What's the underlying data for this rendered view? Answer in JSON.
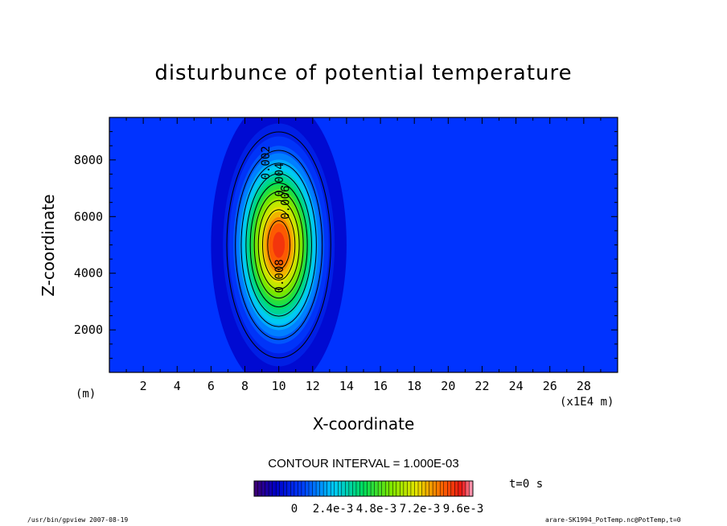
{
  "chart_data": {
    "type": "heatmap",
    "title": "disturbunce of potential temperature",
    "xlabel": "X-coordinate",
    "ylabel": "Z-coordinate",
    "x_unit": "(x1E4 m)",
    "y_unit": "(m)",
    "xlim": [
      0,
      30
    ],
    "ylim": [
      500,
      9500
    ],
    "x_ticks": [
      2,
      4,
      6,
      8,
      10,
      12,
      14,
      16,
      18,
      20,
      22,
      24,
      26,
      28
    ],
    "y_ticks": [
      2000,
      4000,
      6000,
      8000
    ],
    "field": {
      "shape": "gaussian-ellipse",
      "center_x": 10,
      "center_z": 5000,
      "max_value": 0.01,
      "contour_levels": [
        0.001,
        0.002,
        0.003,
        0.004,
        0.005,
        0.006,
        0.007,
        0.008,
        0.009
      ],
      "contour_labels": [
        "0.002",
        "0.004",
        "0.006",
        "0.008"
      ]
    },
    "contour_interval": "CONTOUR INTERVAL = 1.000E-03",
    "colorbar_labels": [
      "0",
      "2.4e-3",
      "4.8e-3",
      "7.2e-3",
      "9.6e-3"
    ],
    "colorbar_range": [
      -0.0012,
      0.0108
    ],
    "time_label": "t=0 s",
    "background_color": "#0033ff"
  },
  "footer": {
    "left": "/usr/bin/gpview   2007-08-19",
    "right": "arare-SK1994_PotTemp.nc@PotTemp,t=0"
  }
}
